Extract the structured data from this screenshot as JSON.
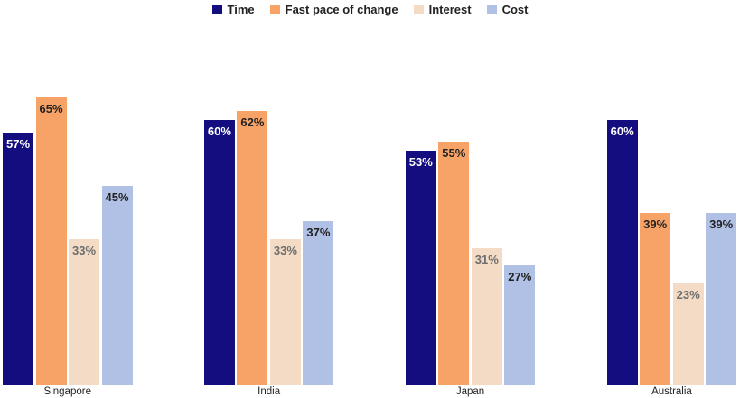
{
  "chart_data": {
    "type": "bar",
    "title": "",
    "xlabel": "",
    "ylabel": "",
    "categories": [
      "Singapore",
      "India",
      "Japan",
      "Australia"
    ],
    "series": [
      {
        "name": "Time",
        "color": "#130D80",
        "label_color": "#FFFFFF",
        "values": [
          57,
          60,
          53,
          60
        ]
      },
      {
        "name": "Fast pace of change",
        "color": "#F7A266",
        "label_color": "#212121",
        "values": [
          65,
          62,
          55,
          39
        ]
      },
      {
        "name": "Interest",
        "color": "#F3DBC5",
        "label_color": "#6E6E6E",
        "values": [
          33,
          33,
          31,
          23
        ]
      },
      {
        "name": "Cost",
        "color": "#B1C0E5",
        "label_color": "#212121",
        "values": [
          45,
          37,
          27,
          39
        ]
      }
    ],
    "value_suffix": "%",
    "value_label_position": "inside-top",
    "legend_position": "top-center",
    "legend_text_color": "#222222",
    "category_label_color": "#222222",
    "grid": false,
    "y_axis_visible": false,
    "ylim": [
      0,
      81
    ]
  }
}
